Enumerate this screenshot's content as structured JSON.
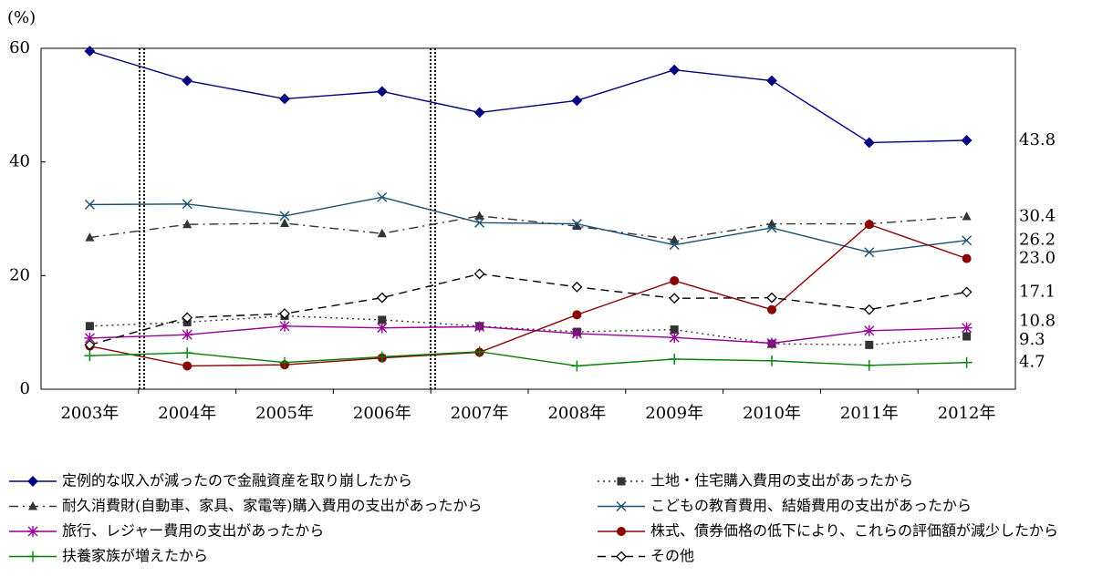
{
  "chart_data": {
    "type": "line",
    "y_label": "(%)",
    "categories": [
      "2003年",
      "2004年",
      "2005年",
      "2006年",
      "2007年",
      "2008年",
      "2009年",
      "2010年",
      "2011年",
      "2012年"
    ],
    "ylim": [
      0,
      60
    ],
    "yticks": [
      0,
      20,
      40,
      60
    ],
    "grid": false,
    "series": [
      {
        "name": "定例的な収入が減ったので金融資産を取り崩したから",
        "color": "#000080",
        "dash": "solid",
        "marker": "diamond",
        "values": [
          59.5,
          54.3,
          51.1,
          52.4,
          48.7,
          50.8,
          56.2,
          54.3,
          43.4,
          43.8
        ],
        "value_labels": [
          null,
          null,
          null,
          null,
          null,
          null,
          null,
          null,
          null,
          "43.8"
        ]
      },
      {
        "name": "土地・住宅購入費用の支出があったから",
        "color": "#333333",
        "dash": "dot",
        "marker": "square",
        "values": [
          11.1,
          11.8,
          12.9,
          12.2,
          11.1,
          10.1,
          10.5,
          8.0,
          7.8,
          9.3
        ],
        "value_labels": [
          null,
          null,
          null,
          null,
          null,
          null,
          null,
          null,
          null,
          "9.3"
        ]
      },
      {
        "name": "耐久消費財(自動車、家具、家電等)購入費用の支出があったから",
        "color": "#333333",
        "dash": "dashdot",
        "marker": "triangle",
        "values": [
          26.7,
          29.0,
          29.2,
          27.4,
          30.5,
          28.7,
          26.3,
          29.1,
          29.1,
          30.4
        ],
        "value_labels": [
          null,
          null,
          null,
          null,
          null,
          null,
          null,
          null,
          null,
          "30.4"
        ]
      },
      {
        "name": "こどもの教育費用、結婚費用の支出があったから",
        "color": "#1a4f72",
        "dash": "solid",
        "marker": "x",
        "values": [
          32.5,
          32.6,
          30.5,
          33.8,
          29.3,
          29.1,
          25.4,
          28.4,
          24.1,
          26.2
        ],
        "value_labels": [
          null,
          null,
          null,
          null,
          null,
          null,
          null,
          null,
          null,
          "26.2"
        ]
      },
      {
        "name": "旅行、レジャー費用の支出があったから",
        "color": "#990099",
        "dash": "solid",
        "marker": "asterisk",
        "values": [
          9.0,
          9.6,
          11.1,
          10.8,
          11.0,
          9.8,
          9.1,
          8.1,
          10.3,
          10.8
        ],
        "value_labels": [
          null,
          null,
          null,
          null,
          null,
          null,
          null,
          null,
          null,
          "10.8"
        ]
      },
      {
        "name": "株式、債券価格の低下により、これらの評価額が減少したから",
        "color": "#8b0000",
        "dash": "solid",
        "marker": "circle",
        "values": [
          7.6,
          4.1,
          4.3,
          5.5,
          6.5,
          13.1,
          19.1,
          14.0,
          29.0,
          23.0
        ],
        "value_labels": [
          null,
          null,
          null,
          null,
          null,
          null,
          null,
          null,
          null,
          "23.0"
        ]
      },
      {
        "name": "扶養家族が増えたから",
        "color": "#008000",
        "dash": "solid",
        "marker": "plus",
        "values": [
          5.9,
          6.4,
          4.7,
          5.7,
          6.6,
          4.1,
          5.3,
          5.0,
          4.2,
          4.7
        ],
        "value_labels": [
          null,
          null,
          null,
          null,
          null,
          null,
          null,
          null,
          null,
          "4.7"
        ]
      },
      {
        "name": "その他",
        "color": "#000000",
        "dash": "dash",
        "marker": "open-diamond",
        "values": [
          7.8,
          12.6,
          13.3,
          16.1,
          20.3,
          18.0,
          16.0,
          16.1,
          14.0,
          17.1
        ],
        "value_labels": [
          null,
          null,
          null,
          null,
          null,
          null,
          null,
          null,
          null,
          "17.1"
        ]
      }
    ]
  }
}
